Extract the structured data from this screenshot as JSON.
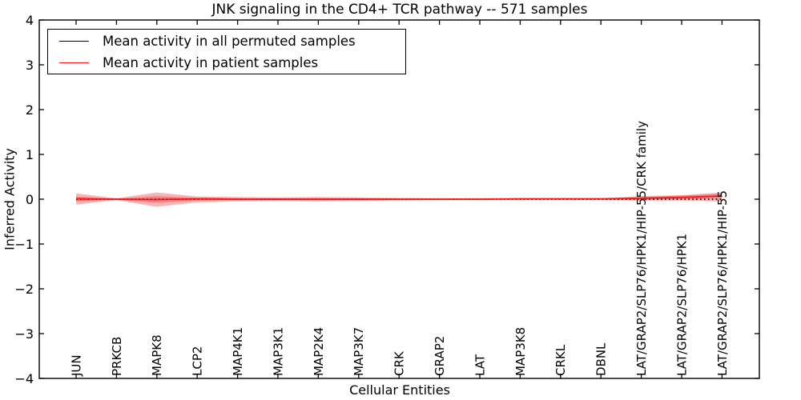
{
  "figure": {
    "title": "JNK signaling in the CD4+ TCR pathway -- 571 samples",
    "xlabel": "Cellular Entities",
    "ylabel": "Inferred Activity"
  },
  "legend": {
    "position": "upper left",
    "items": [
      {
        "label": "Mean activity in all permuted samples",
        "color": "#000000",
        "style": "solid"
      },
      {
        "label": "Mean activity in patient samples",
        "color": "#ff1212",
        "style": "solid"
      }
    ]
  },
  "chart_data": {
    "type": "line",
    "title": "JNK signaling in the CD4+ TCR pathway -- 571 samples",
    "xlabel": "Cellular Entities",
    "ylabel": "Inferred Activity",
    "ylim": [
      -4,
      4
    ],
    "yticks": [
      4,
      3,
      2,
      1,
      0,
      -1,
      -2,
      -3,
      -4
    ],
    "ytick_labels": [
      "4",
      "3",
      "2",
      "1",
      "0",
      "−1",
      "−2",
      "−3",
      "−4"
    ],
    "grid": false,
    "legend_position": "upper left",
    "categories": [
      "JUN",
      "PRKCB",
      "MAPK8",
      "LCP2",
      "MAP4K1",
      "MAP3K1",
      "MAP2K4",
      "MAP3K7",
      "CRK",
      "GRAP2",
      "LAT",
      "MAP3K8",
      "CRKL",
      "DBNL",
      "LAT/GRAP2/SLP76/HPK1/HIP-55/CRK family",
      "LAT/GRAP2/SLP76/HPK1",
      "LAT/GRAP2/SLP76/HPK1/HIP-55"
    ],
    "series": [
      {
        "name": "Mean activity in all permuted samples",
        "color": "#000000",
        "style": "dotted",
        "values": [
          0,
          0,
          0,
          0,
          0,
          0,
          0,
          0,
          0,
          0,
          0,
          0,
          0,
          0,
          0,
          0,
          0
        ]
      },
      {
        "name": "Mean activity in patient samples",
        "color": "#ff1212",
        "style": "solid",
        "values": [
          0.01,
          0.0,
          -0.01,
          0.01,
          0.0,
          0.0,
          0.0,
          0.0,
          0.0,
          0.0,
          0.0,
          0.01,
          0.01,
          0.01,
          0.02,
          0.04,
          0.07
        ]
      }
    ],
    "bands": [
      {
        "name": "permuted-activity-spread",
        "color": "#e62020",
        "opacity": 0.33,
        "upper": [
          0.13,
          0.02,
          0.15,
          0.06,
          0.05,
          0.04,
          0.05,
          0.04,
          0.03,
          0.02,
          0.02,
          0.02,
          0.02,
          0.02,
          0.07,
          0.09,
          0.15
        ],
        "lower": [
          -0.12,
          -0.02,
          -0.17,
          -0.07,
          -0.05,
          -0.04,
          -0.05,
          -0.04,
          -0.03,
          -0.02,
          -0.02,
          -0.02,
          -0.02,
          -0.02,
          -0.03,
          -0.03,
          -0.05
        ]
      },
      {
        "name": "patient-activity-spread",
        "color": "#e62020",
        "opacity": 0.33,
        "upper": [
          0.06,
          0.01,
          0.07,
          0.03,
          0.02,
          0.02,
          0.02,
          0.02,
          0.01,
          0.01,
          0.01,
          0.01,
          0.01,
          0.01,
          0.05,
          0.08,
          0.12
        ],
        "lower": [
          -0.05,
          -0.01,
          -0.08,
          -0.03,
          -0.02,
          -0.02,
          -0.02,
          -0.02,
          -0.01,
          -0.01,
          -0.01,
          -0.01,
          -0.01,
          -0.01,
          -0.01,
          0.0,
          0.02
        ]
      }
    ]
  }
}
